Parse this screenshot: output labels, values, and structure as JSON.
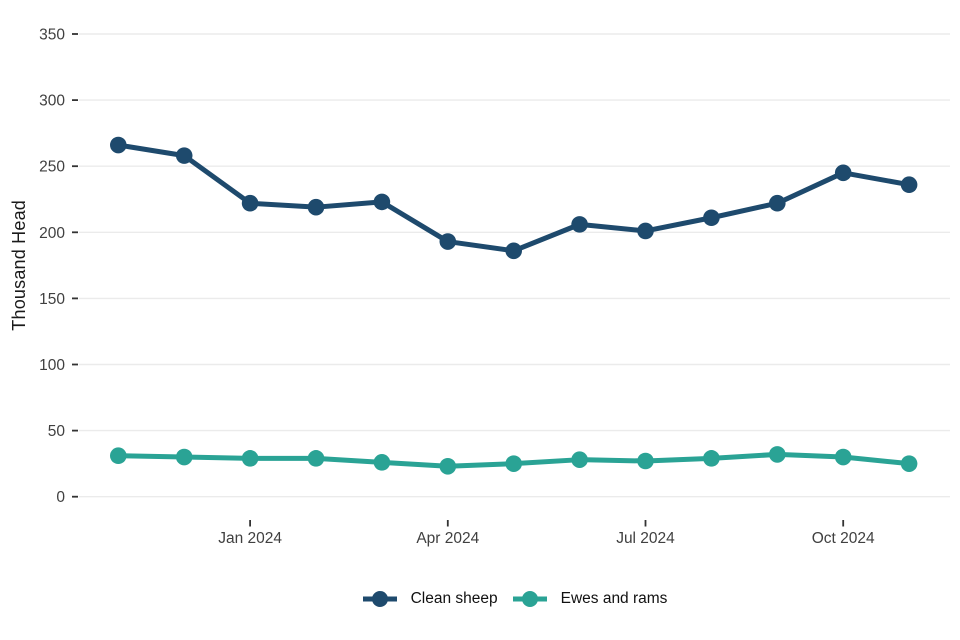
{
  "chart_data": {
    "type": "line",
    "title": "",
    "ylabel": "Thousand Head",
    "xlabel": "",
    "x": [
      "Nov 2023",
      "Dec 2023",
      "Jan 2024",
      "Feb 2024",
      "Mar 2024",
      "Apr 2024",
      "May 2024",
      "Jun 2024",
      "Jul 2024",
      "Aug 2024",
      "Sep 2024",
      "Oct 2024",
      "Nov 2024"
    ],
    "x_ticks": [
      {
        "index": 2,
        "label": "Jan 2024"
      },
      {
        "index": 5,
        "label": "Apr 2024"
      },
      {
        "index": 8,
        "label": "Jul 2024"
      },
      {
        "index": 11,
        "label": "Oct 2024"
      }
    ],
    "y_ticks": [
      0,
      50,
      100,
      150,
      200,
      250,
      300,
      350
    ],
    "ylim": [
      0,
      350
    ],
    "grid": "horizontal major gridlines only, light gray on white",
    "legend_position": "bottom-center",
    "series": [
      {
        "name": "Clean sheep",
        "color": "#1e4a6d",
        "values": [
          266,
          258,
          222,
          219,
          223,
          193,
          186,
          206,
          201,
          211,
          222,
          245,
          236
        ]
      },
      {
        "name": "Ewes and rams",
        "color": "#2aa395",
        "values": [
          31,
          30,
          29,
          29,
          26,
          23,
          25,
          28,
          27,
          29,
          32,
          30,
          25
        ]
      }
    ],
    "style": {
      "gridline_color": "#ebebeb",
      "tick_color": "#333333",
      "tick_text_color": "#404040",
      "line_width": 5,
      "point_radius": 8.3
    }
  }
}
